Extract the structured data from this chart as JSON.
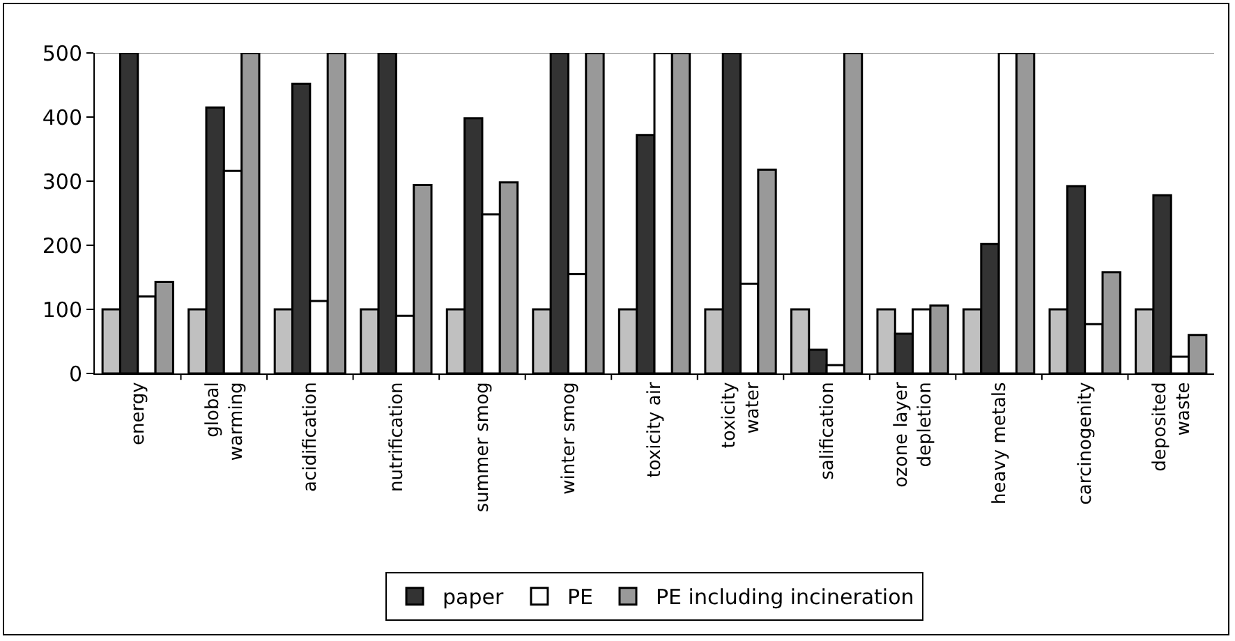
{
  "chart_data": {
    "type": "bar",
    "categories": [
      "energy",
      "global warming",
      "acidification",
      "nutrification",
      "summer smog",
      "winter smog",
      "toxicity air",
      "toxicity water",
      "salification",
      "ozone layer depletion",
      "heavy metals",
      "carcinogenity",
      "deposited waste"
    ],
    "series": [
      {
        "color": "#c0c0c0",
        "values": [
          100,
          100,
          100,
          100,
          100,
          100,
          100,
          100,
          100,
          100,
          100,
          100,
          100
        ]
      },
      {
        "name": "paper",
        "color": "#333333",
        "values": [
          500,
          415,
          452,
          500,
          398,
          500,
          372,
          500,
          37,
          62,
          202,
          292,
          278
        ]
      },
      {
        "name": "PE",
        "color": "#ffffff",
        "values": [
          120,
          316,
          113,
          90,
          248,
          155,
          500,
          140,
          13,
          100,
          500,
          77,
          26
        ]
      },
      {
        "name": "PE including incineration",
        "color": "#999999",
        "values": [
          143,
          500,
          500,
          294,
          298,
          500,
          500,
          318,
          500,
          106,
          500,
          158,
          60
        ]
      }
    ],
    "ylim": [
      0,
      500
    ],
    "yticks": [
      0,
      100,
      200,
      300,
      400,
      500
    ],
    "grid": false,
    "legend": "bottom"
  }
}
